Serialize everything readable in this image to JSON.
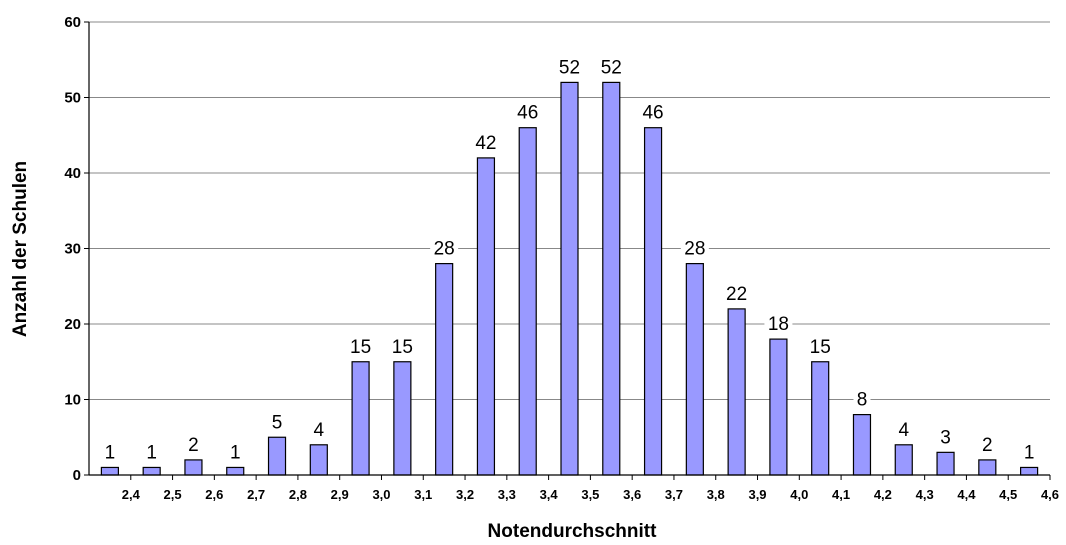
{
  "chart_data": {
    "type": "bar",
    "title": "",
    "xlabel": "Notendurchschnitt",
    "ylabel": "Anzahl der Schulen",
    "ylim": [
      0,
      60
    ],
    "yticks": [
      "0",
      "10",
      "20",
      "30",
      "40",
      "50",
      "60"
    ],
    "x_tick_labels": [
      "2,4",
      "2,5",
      "2,6",
      "2,7",
      "2,8",
      "2,9",
      "3,0",
      "3,1",
      "3,2",
      "3,3",
      "3,4",
      "3,5",
      "3,6",
      "3,7",
      "3,8",
      "3,9",
      "4,0",
      "4,1",
      "4,2",
      "4,3",
      "4,4",
      "4,5",
      "4,6"
    ],
    "values": [
      1,
      1,
      2,
      1,
      5,
      4,
      15,
      15,
      28,
      42,
      46,
      52,
      52,
      46,
      28,
      22,
      18,
      15,
      8,
      4,
      3,
      2,
      1
    ],
    "bar_color": "#9999ff",
    "grid": true,
    "legend": false
  }
}
